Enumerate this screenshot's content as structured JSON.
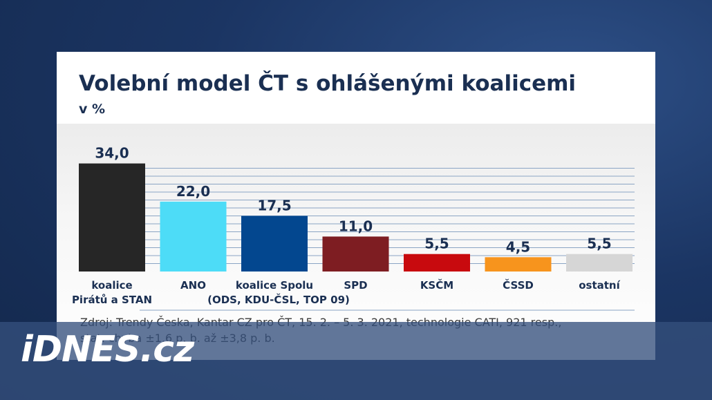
{
  "chart_data": {
    "type": "bar",
    "title": "Volební model ČT s ohlášenými koalicemi",
    "subtitle": "v %",
    "categories": [
      [
        "koalice",
        "Pirátů a STAN"
      ],
      [
        "ANO"
      ],
      [
        "koalice Spolu",
        "(ODS, KDU-ČSL, TOP 09)"
      ],
      [
        "SPD"
      ],
      [
        "KSČM"
      ],
      [
        "ČSSD"
      ],
      [
        "ostatní"
      ]
    ],
    "values": [
      34.0,
      22.0,
      17.5,
      11.0,
      5.5,
      4.5,
      5.5
    ],
    "value_labels": [
      "34,0",
      "22,0",
      "17,5",
      "11,0",
      "5,5",
      "4,5",
      "5,5"
    ],
    "colors": [
      "#262626",
      "#4ddcf7",
      "#03478f",
      "#7e1d22",
      "#c80a0e",
      "#f7941d",
      "#d6d6d6"
    ],
    "ylim": [
      0,
      40
    ],
    "grid": true,
    "source": "Zdroj: Trendy Česka, Kantar CZ pro ČT, 15. 2. – 5. 3. 2021, technologie CATI, 921 resp., stat. chyba ±1,6 p. b. až ±3,8 p. b."
  },
  "brand": {
    "logo": "iDNES.cz"
  }
}
